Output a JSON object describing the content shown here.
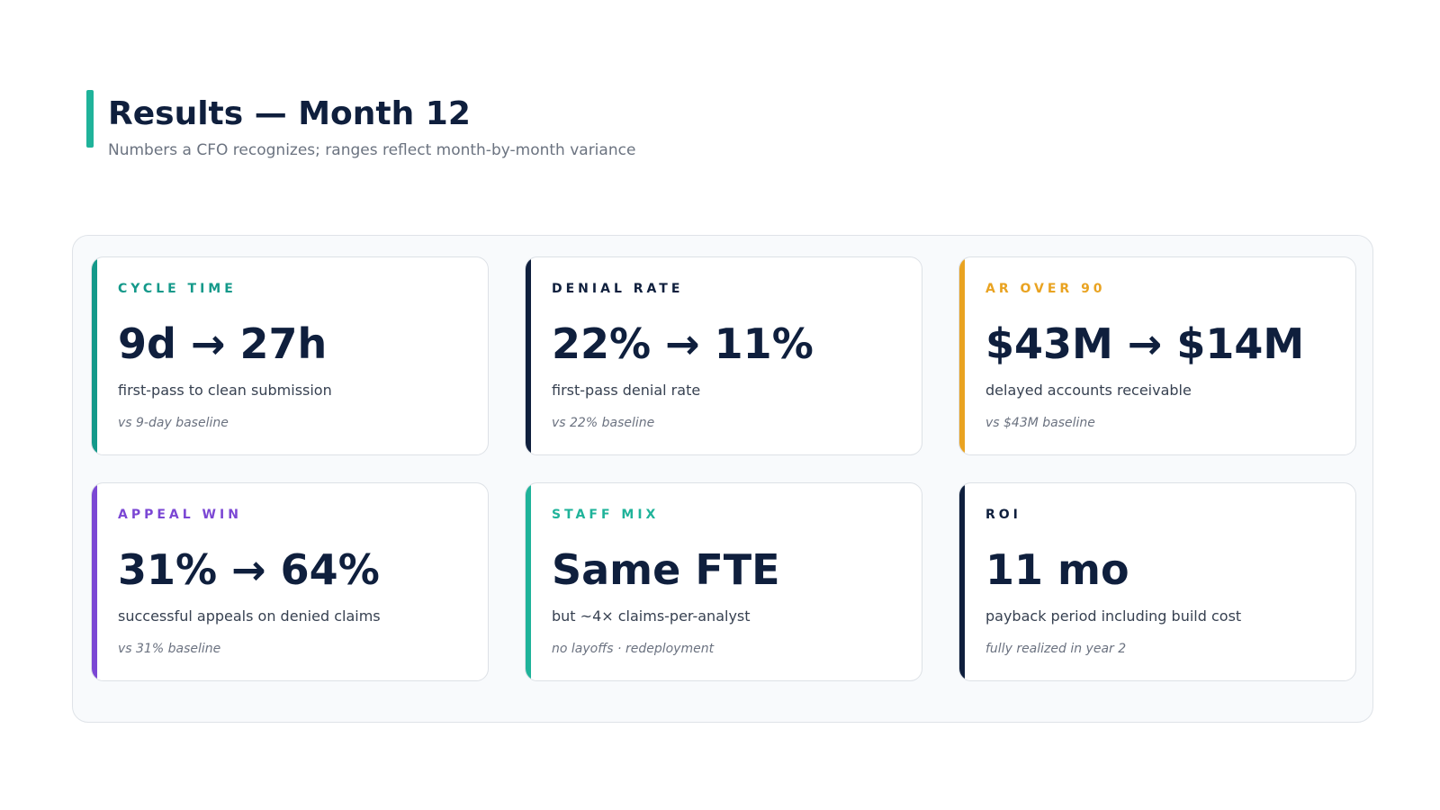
{
  "header": {
    "title": "Results — Month 12",
    "subtitle": "Numbers a CFO recognizes; ranges reflect month-by-month variance",
    "accent_color": "#1fb39a"
  },
  "cards": [
    {
      "label": "CYCLE TIME",
      "value": "9d → 27h",
      "description": "first-pass to clean submission",
      "note": "vs 9-day baseline",
      "accent_color": "#14998a",
      "label_color": "#14998a"
    },
    {
      "label": "DENIAL RATE",
      "value": "22% → 11%",
      "description": "first-pass denial rate",
      "note": "vs 22% baseline",
      "accent_color": "#0f1f3d",
      "label_color": "#0f1f3d"
    },
    {
      "label": "AR OVER 90",
      "value": "$43M → $14M",
      "description": "delayed accounts receivable",
      "note": "vs $43M baseline",
      "accent_color": "#e9a321",
      "label_color": "#e9a321"
    },
    {
      "label": "APPEAL WIN",
      "value": "31% → 64%",
      "description": "successful appeals on denied claims",
      "note": "vs 31% baseline",
      "accent_color": "#7b47d4",
      "label_color": "#7b47d4"
    },
    {
      "label": "STAFF MIX",
      "value": "Same FTE",
      "description": "but ~4× claims-per-analyst",
      "note": "no layoffs · redeployment",
      "accent_color": "#1fb39a",
      "label_color": "#1fb39a"
    },
    {
      "label": "ROI",
      "value": "11 mo",
      "description": "payback period including build cost",
      "note": "fully realized in year 2",
      "accent_color": "#0f1f3d",
      "label_color": "#0f1f3d"
    }
  ]
}
